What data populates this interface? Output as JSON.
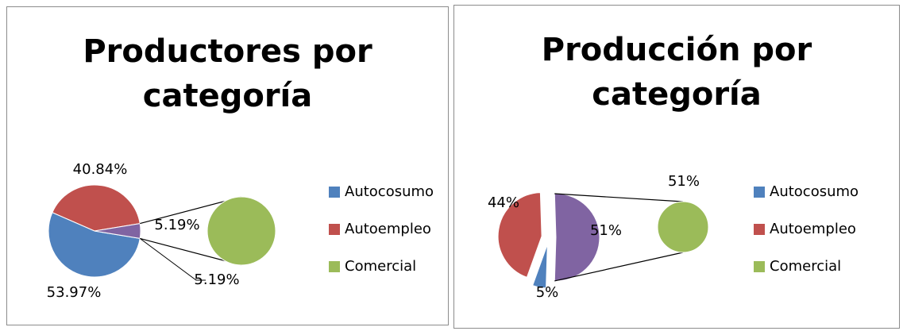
{
  "chart_data": [
    {
      "type": "pie",
      "secondary_pie": true,
      "explode": false,
      "title": "Productores por categoría",
      "categories": [
        "Autocosumo",
        "Autoempleo",
        "Comercial"
      ],
      "values": [
        53.97,
        40.84,
        5.19
      ],
      "value_labels": [
        "53.97%",
        "40.84%",
        "5.19%"
      ],
      "colors": [
        "#4f81bd",
        "#c0504d",
        "#9bbb59"
      ],
      "other_color": "#8064a2",
      "legend": "right"
    },
    {
      "type": "pie",
      "secondary_pie": true,
      "explode": true,
      "title": "Producción por categoría",
      "categories": [
        "Autocosumo",
        "Autoempleo",
        "Comercial"
      ],
      "values": [
        5,
        44,
        51
      ],
      "value_labels": [
        "5%",
        "44%",
        "51%"
      ],
      "colors": [
        "#4f81bd",
        "#c0504d",
        "#9bbb59"
      ],
      "other_color": "#8064a2",
      "legend": "right"
    }
  ]
}
